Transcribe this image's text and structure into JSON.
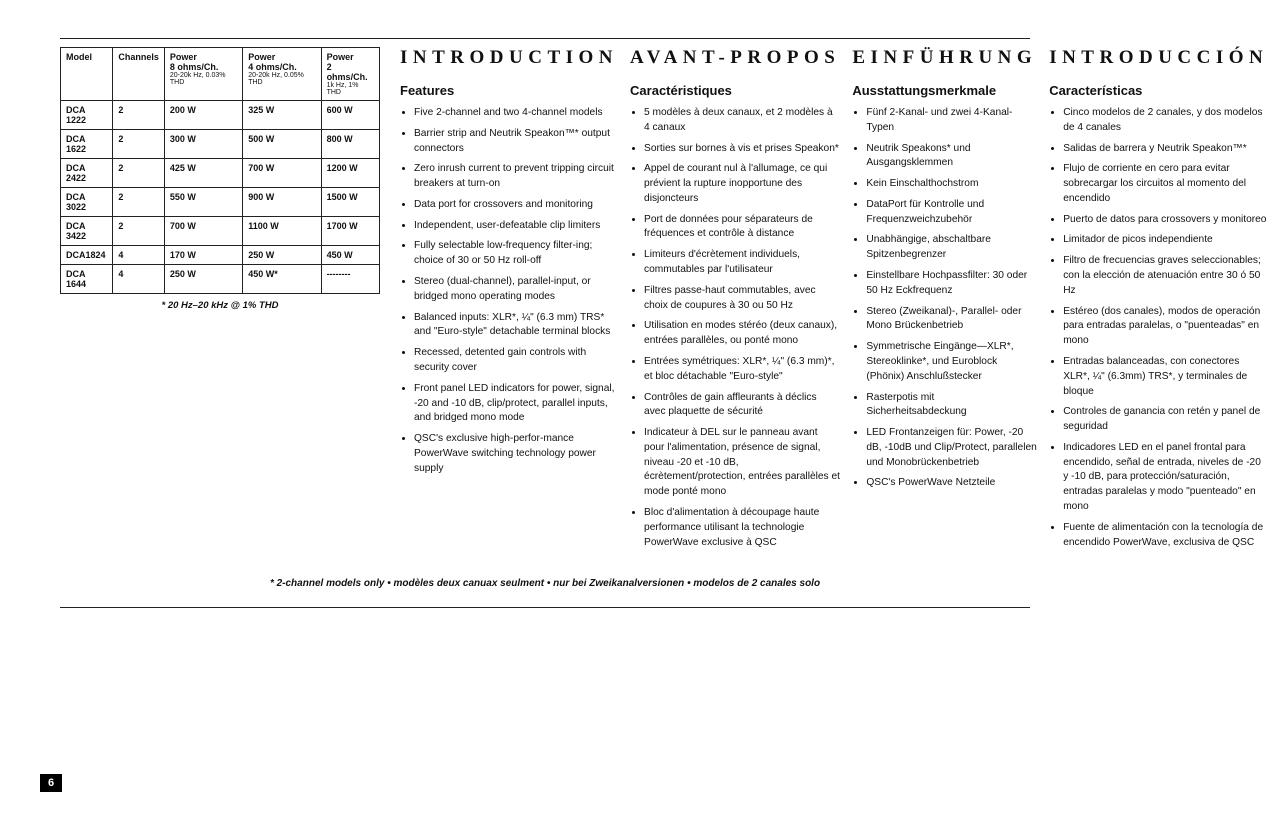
{
  "page_number": "6",
  "footnote": "* 2-channel models only • modèles deux canuax seulment • nur bei Zweikanalversionen • modelos de 2 canales solo",
  "table": {
    "headers": {
      "model": "Model",
      "channels": "Channels",
      "p8": "Power\n8 ohms/Ch.",
      "p8_sub": "20-20k Hz, 0.03% THD",
      "p4": "Power\n4 ohms/Ch.",
      "p4_sub": "20-20k Hz, 0.05% THD",
      "p2": "Power\n2 ohms/Ch.",
      "p2_sub": "1k Hz, 1% THD"
    },
    "rows": [
      {
        "model": "DCA 1222",
        "ch": "2",
        "p8": "200 W",
        "p4": "325 W",
        "p2": "600 W"
      },
      {
        "model": "DCA 1622",
        "ch": "2",
        "p8": "300 W",
        "p4": "500 W",
        "p2": "800 W"
      },
      {
        "model": "DCA 2422",
        "ch": "2",
        "p8": "425 W",
        "p4": "700 W",
        "p2": "1200 W"
      },
      {
        "model": "DCA 3022",
        "ch": "2",
        "p8": "550 W",
        "p4": "900 W",
        "p2": "1500 W"
      },
      {
        "model": "DCA 3422",
        "ch": "2",
        "p8": "700 W",
        "p4": "1100 W",
        "p2": "1700 W"
      },
      {
        "model": "DCA1824",
        "ch": "4",
        "p8": "170 W",
        "p4": "250 W",
        "p2": "450 W"
      },
      {
        "model": "DCA 1644",
        "ch": "4",
        "p8": "250 W",
        "p4": "450 W*",
        "p2": "--------"
      }
    ],
    "note": "* 20 Hz–20 kHz @ 1% THD"
  },
  "columns": [
    {
      "header": "INTRODUCTION",
      "sub": "Features",
      "items": [
        "Five 2-channel and two 4-channel models",
        "Barrier strip and Neutrik Speakon™* output connectors",
        "Zero inrush current to prevent tripping circuit breakers at turn-on",
        "Data port for crossovers and monitoring",
        "Independent, user-defeatable clip limiters",
        "Fully selectable low-frequency filter-ing; choice of 30 or 50 Hz roll-off",
        "Stereo (dual-channel), parallel-input, or bridged mono operating modes",
        "Balanced inputs: XLR*, ¼\" (6.3 mm) TRS* and \"Euro-style\" detachable terminal blocks",
        "Recessed, detented gain controls with security cover",
        "Front panel LED indicators for power, signal, -20 and -10 dB, clip/protect, parallel inputs, and bridged mono mode",
        "QSC's exclusive high-perfor-mance PowerWave switching technology power supply"
      ]
    },
    {
      "header": "AVANT-PROPOS",
      "sub": "Caractéristiques",
      "items": [
        "5 modèles à deux canaux, et 2 modèles à 4 canaux",
        "Sorties sur bornes à vis et prises Speakon*",
        "Appel de courant nul à l'allumage, ce qui prévient la rupture inopportune des disjoncteurs",
        "Port de données pour séparateurs de fréquences et contrôle à distance",
        "Limiteurs d'écrètement individuels, commutables par l'utilisateur",
        "Filtres passe-haut commutables, avec choix de coupures à 30 ou 50 Hz",
        "Utilisation en modes stéréo (deux canaux), entrées parallèles, ou ponté mono",
        "Entrées symétriques: XLR*, ¼\" (6.3 mm)*, et bloc détachable \"Euro-style\"",
        "Contrôles de gain affleurants à déclics avec plaquette de sécurité",
        "Indicateur à DEL sur le panneau avant pour l'alimentation, présence de signal, niveau -20 et -10 dB, écrètement/protection, entrées parallèles et mode ponté mono",
        "Bloc d'alimentation à découpage haute performance utilisant la technologie PowerWave exclusive à QSC"
      ]
    },
    {
      "header": "EINFÜHRUNG",
      "sub": "Ausstattungsmerkmale",
      "items": [
        "Fünf 2-Kanal- und zwei 4-Kanal-Typen",
        "Neutrik Speakons* und Ausgangsklemmen",
        "Kein Einschalthochstrom",
        "DataPort für Kontrolle und Frequenzweichzubehör",
        "Unabhängige, abschaltbare Spitzenbegrenzer",
        "Einstellbare Hochpassfilter: 30 oder 50 Hz Eckfrequenz",
        "Stereo (Zweikanal)-, Parallel- oder Mono Brückenbetrieb",
        "Symmetrische Eingänge—XLR*, Stereoklinke*, und Euroblock (Phönix) Anschlußstecker",
        "Rasterpotis mit Sicherheitsabdeckung",
        "LED Frontanzeigen für: Power, -20 dB, -10dB und Clip/Protect, parallelen und Monobrückenbetrieb",
        "QSC's PowerWave Netzteile"
      ]
    },
    {
      "header": "INTRODUCCIÓN",
      "sub": "Características",
      "items": [
        "Cinco modelos de 2 canales, y dos modelos de 4 canales",
        "Salidas de barrera y Neutrik Speakon™*",
        "Flujo de corriente en cero para evitar sobrecargar los circuitos al momento del encendido",
        "Puerto de datos para crossovers y monitoreo",
        "Limitador de picos independiente",
        "Filtro de frecuencias graves seleccionables; con la elección de atenuación entre 30 ó 50 Hz",
        "Estéreo (dos canales), modos de operación para entradas paralelas, o \"puenteadas\" en mono",
        "Entradas balanceadas, con conectores XLR*, ¼\" (6.3mm) TRS*, y terminales de bloque",
        "Controles de ganancia con retén y panel de seguridad",
        "Indicadores LED en el panel frontal para encendido, señal de entrada, niveles de -20 y -10 dB, para protección/saturación, entradas paralelas y modo \"puenteado\" en mono",
        "Fuente de alimentación con la tecnología de encendido PowerWave, exclusiva de QSC"
      ]
    }
  ]
}
